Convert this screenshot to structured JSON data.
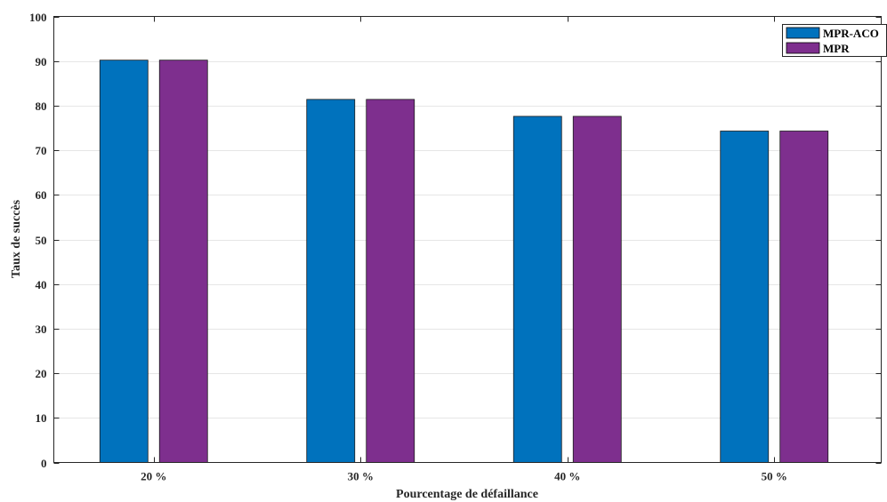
{
  "chart_data": {
    "type": "bar",
    "title": "",
    "xlabel": "Pourcentage de défaillance",
    "ylabel": "Taux de succès",
    "categories": [
      "20 %",
      "30 %",
      "40 %",
      "50 %"
    ],
    "series": [
      {
        "name": "MPR-ACO",
        "values": [
          90.2,
          81.4,
          77.6,
          74.3
        ]
      },
      {
        "name": "MPR",
        "values": [
          90.2,
          81.4,
          77.6,
          74.3
        ]
      }
    ],
    "ylim": [
      0,
      100
    ],
    "yticks": [
      "0",
      "10",
      "20",
      "30",
      "40",
      "50",
      "60",
      "70",
      "80",
      "90",
      "100"
    ],
    "grid": true,
    "legend_position": "top-right",
    "colors": {
      "series": [
        "#0072bd",
        "#7e2f8e"
      ],
      "grid": "#e6e6e6",
      "axis": "#262626"
    }
  }
}
